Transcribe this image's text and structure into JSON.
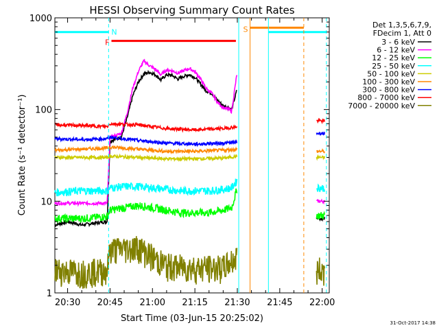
{
  "chart_data": {
    "type": "line",
    "title": "HESSI Observing Summary Count Rates",
    "xlabel": "Start Time (03-Jun-15 20:25:02)",
    "ylabel": "Count Rate (s⁻¹ detector⁻¹)",
    "y_scale": "log",
    "ylim": [
      1,
      1000
    ],
    "xlim": [
      "20:25:02",
      "22:03"
    ],
    "y_ticks": [
      "1",
      "10",
      "100",
      "1000"
    ],
    "x_ticks": [
      "20:30",
      "20:45",
      "21:00",
      "21:15",
      "21:30",
      "21:45",
      "22:00"
    ],
    "x_tick_minutes": [
      30,
      45,
      60,
      75,
      90,
      105,
      120
    ],
    "timestamp": "31-Oct-2017 14:38",
    "legend_header": [
      "Det 1,3,5,6,7,9,",
      "FDecim 1, Att 0"
    ],
    "series": [
      {
        "name": "3 - 6 keV",
        "color": "#000000",
        "points": [
          [
            25.5,
            5.5
          ],
          [
            30,
            6
          ],
          [
            35,
            5.5
          ],
          [
            40,
            5.8
          ],
          [
            44,
            6
          ],
          [
            45,
            45
          ],
          [
            47,
            48
          ],
          [
            49,
            50
          ],
          [
            51,
            80
          ],
          [
            53,
            140
          ],
          [
            55,
            200
          ],
          [
            57,
            245
          ],
          [
            59,
            255
          ],
          [
            61,
            240
          ],
          [
            63,
            210
          ],
          [
            65,
            240
          ],
          [
            67,
            235
          ],
          [
            69,
            215
          ],
          [
            71,
            230
          ],
          [
            73,
            240
          ],
          [
            75,
            225
          ],
          [
            77,
            190
          ],
          [
            79,
            160
          ],
          [
            81,
            150
          ],
          [
            83,
            125
          ],
          [
            85,
            110
          ],
          [
            87,
            105
          ],
          [
            88,
            100
          ],
          [
            89,
            130
          ],
          [
            90,
            170
          ]
        ]
      },
      {
        "name": "6 - 12 keV",
        "color": "#ff00ff",
        "points": [
          [
            25.5,
            9.5
          ],
          [
            35,
            9.5
          ],
          [
            44,
            9.5
          ],
          [
            45,
            50
          ],
          [
            47,
            52
          ],
          [
            49,
            55
          ],
          [
            51,
            90
          ],
          [
            53,
            170
          ],
          [
            55,
            260
          ],
          [
            57,
            340
          ],
          [
            59,
            300
          ],
          [
            61,
            275
          ],
          [
            63,
            240
          ],
          [
            65,
            270
          ],
          [
            67,
            265
          ],
          [
            69,
            250
          ],
          [
            71,
            265
          ],
          [
            73,
            280
          ],
          [
            75,
            260
          ],
          [
            77,
            215
          ],
          [
            79,
            170
          ],
          [
            81,
            150
          ],
          [
            83,
            120
          ],
          [
            85,
            105
          ],
          [
            87,
            100
          ],
          [
            88,
            95
          ],
          [
            89,
            160
          ],
          [
            90,
            260
          ]
        ]
      },
      {
        "name": "12 - 25 keV",
        "color": "#00ff00",
        "points": [
          [
            25.5,
            6.5
          ],
          [
            35,
            6.5
          ],
          [
            44,
            6.8
          ],
          [
            45,
            8
          ],
          [
            50,
            8.5
          ],
          [
            55,
            9
          ],
          [
            60,
            8.5
          ],
          [
            65,
            8
          ],
          [
            70,
            7.5
          ],
          [
            75,
            7.5
          ],
          [
            80,
            7.5
          ],
          [
            85,
            8
          ],
          [
            88,
            8.5
          ],
          [
            90,
            14
          ]
        ]
      },
      {
        "name": "25 - 50 keV",
        "color": "#00ffff",
        "points": [
          [
            25.5,
            12.5
          ],
          [
            35,
            13
          ],
          [
            44,
            13
          ],
          [
            45,
            14
          ],
          [
            50,
            14.5
          ],
          [
            55,
            14.5
          ],
          [
            60,
            14
          ],
          [
            65,
            13.5
          ],
          [
            70,
            13
          ],
          [
            75,
            13
          ],
          [
            80,
            13
          ],
          [
            85,
            13.5
          ],
          [
            88,
            14
          ],
          [
            90,
            17
          ]
        ]
      },
      {
        "name": "50 - 100 keV",
        "color": "#cccc00",
        "points": [
          [
            25.5,
            30
          ],
          [
            35,
            30
          ],
          [
            44,
            30
          ],
          [
            45,
            31
          ],
          [
            55,
            30
          ],
          [
            65,
            29
          ],
          [
            75,
            29
          ],
          [
            85,
            29.5
          ],
          [
            90,
            31
          ]
        ]
      },
      {
        "name": "100 - 300 keV",
        "color": "#ff8800",
        "points": [
          [
            25.5,
            36
          ],
          [
            35,
            37
          ],
          [
            44,
            38
          ],
          [
            45,
            39
          ],
          [
            55,
            37
          ],
          [
            65,
            35
          ],
          [
            75,
            35
          ],
          [
            85,
            36
          ],
          [
            90,
            37
          ]
        ]
      },
      {
        "name": "300 - 800 keV",
        "color": "#0000ff",
        "points": [
          [
            25.5,
            48
          ],
          [
            35,
            47
          ],
          [
            44,
            48
          ],
          [
            45,
            50
          ],
          [
            55,
            46
          ],
          [
            65,
            43
          ],
          [
            75,
            42
          ],
          [
            85,
            43
          ],
          [
            90,
            44
          ]
        ]
      },
      {
        "name": "800 - 7000 keV",
        "color": "#ff0000",
        "points": [
          [
            25.5,
            68
          ],
          [
            35,
            67
          ],
          [
            44,
            65
          ],
          [
            45,
            70
          ],
          [
            55,
            68
          ],
          [
            65,
            62
          ],
          [
            75,
            60
          ],
          [
            85,
            62
          ],
          [
            90,
            65
          ]
        ]
      },
      {
        "name": "7000 - 20000 keV",
        "color": "#808000",
        "points": [
          [
            25.5,
            1.8
          ],
          [
            35,
            1.7
          ],
          [
            44,
            1.8
          ],
          [
            45,
            3
          ],
          [
            55,
            3.2
          ],
          [
            60,
            2.5
          ],
          [
            65,
            2
          ],
          [
            75,
            1.9
          ],
          [
            85,
            1.9
          ],
          [
            90,
            2.5
          ]
        ]
      }
    ],
    "late_segment": {
      "x_range": [
        118,
        121
      ],
      "values": {
        "800 - 7000 keV": 75,
        "300 - 800 keV": 55,
        "100 - 300 keV": 35,
        "50 - 100 keV": 30,
        "25 - 50 keV": 14,
        "6 - 12 keV": 10,
        "3 - 6 keV": 6.5,
        "12 - 25 keV": 7,
        "7000 - 20000 keV": 1.8
      }
    },
    "annotations": [
      {
        "label": "N",
        "color": "#00ffff",
        "x_start": 25.5,
        "x_end": 44.5,
        "y": 700
      },
      {
        "label": "F",
        "color": "#ff0000",
        "x_start": 45.5,
        "x_end": 89.5,
        "y": 560
      },
      {
        "label": "S",
        "color": "#ff8800",
        "x_start": 94.5,
        "x_end": 113.5,
        "y": 780
      },
      {
        "label": "",
        "color": "#00ffff",
        "x_start": 101,
        "x_end": 121.5,
        "y": 700
      }
    ],
    "vertical_markers": [
      {
        "x": 44.5,
        "color": "#00ffff",
        "style": "dashed"
      },
      {
        "x": 90.5,
        "color": "#00ffff",
        "style": "solid"
      },
      {
        "x": 94.5,
        "color": "#ff8800",
        "style": "solid"
      },
      {
        "x": 101,
        "color": "#00ffff",
        "style": "solid"
      },
      {
        "x": 113.5,
        "color": "#ff8800",
        "style": "dashed"
      },
      {
        "x": 121.5,
        "color": "#00ffff",
        "style": "dashed"
      }
    ],
    "grid": false,
    "legend_position": "right"
  }
}
